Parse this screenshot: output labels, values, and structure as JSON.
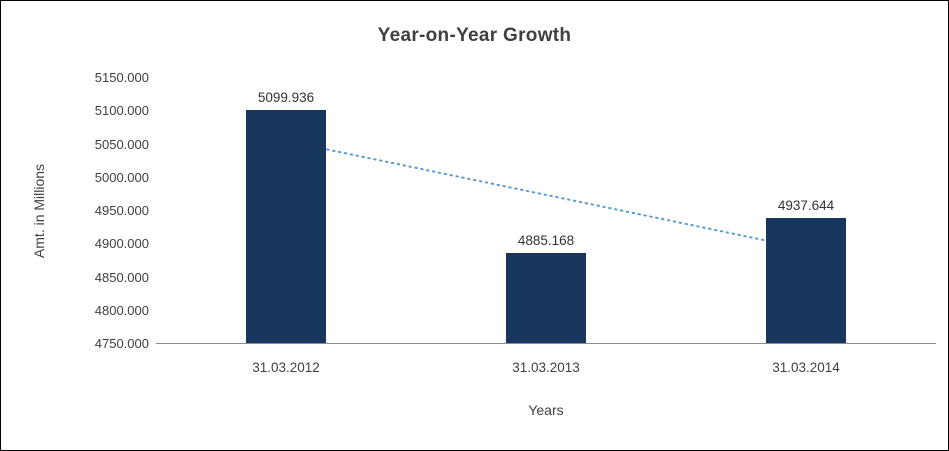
{
  "title": "Year-on-Year Growth",
  "chart_data": {
    "type": "bar",
    "title": "Year-on-Year Growth",
    "categories": [
      "31.03.2012",
      "31.03.2013",
      "31.03.2014"
    ],
    "values": [
      5099.936,
      4885.168,
      4937.644
    ],
    "data_labels": [
      "5099.936",
      "4885.168",
      "4937.644"
    ],
    "xlabel": "Years",
    "ylabel": "Amt. in Millions",
    "ylim": [
      4750,
      5150
    ],
    "ytick_step": 50,
    "ytick_labels": [
      "4750.000",
      "4800.000",
      "4850.000",
      "4900.000",
      "4950.000",
      "5000.000",
      "5050.000",
      "5100.000",
      "5150.000"
    ],
    "grid": false,
    "legend": "none",
    "bar_color": "#17375E",
    "trendline": {
      "type": "linear",
      "style": "dotted",
      "color": "#5B9BD5"
    }
  },
  "colors": {
    "background": "#ffffff",
    "border": "#000000",
    "axis_line": "#8c8c8c",
    "text": "#3f3f3f"
  }
}
